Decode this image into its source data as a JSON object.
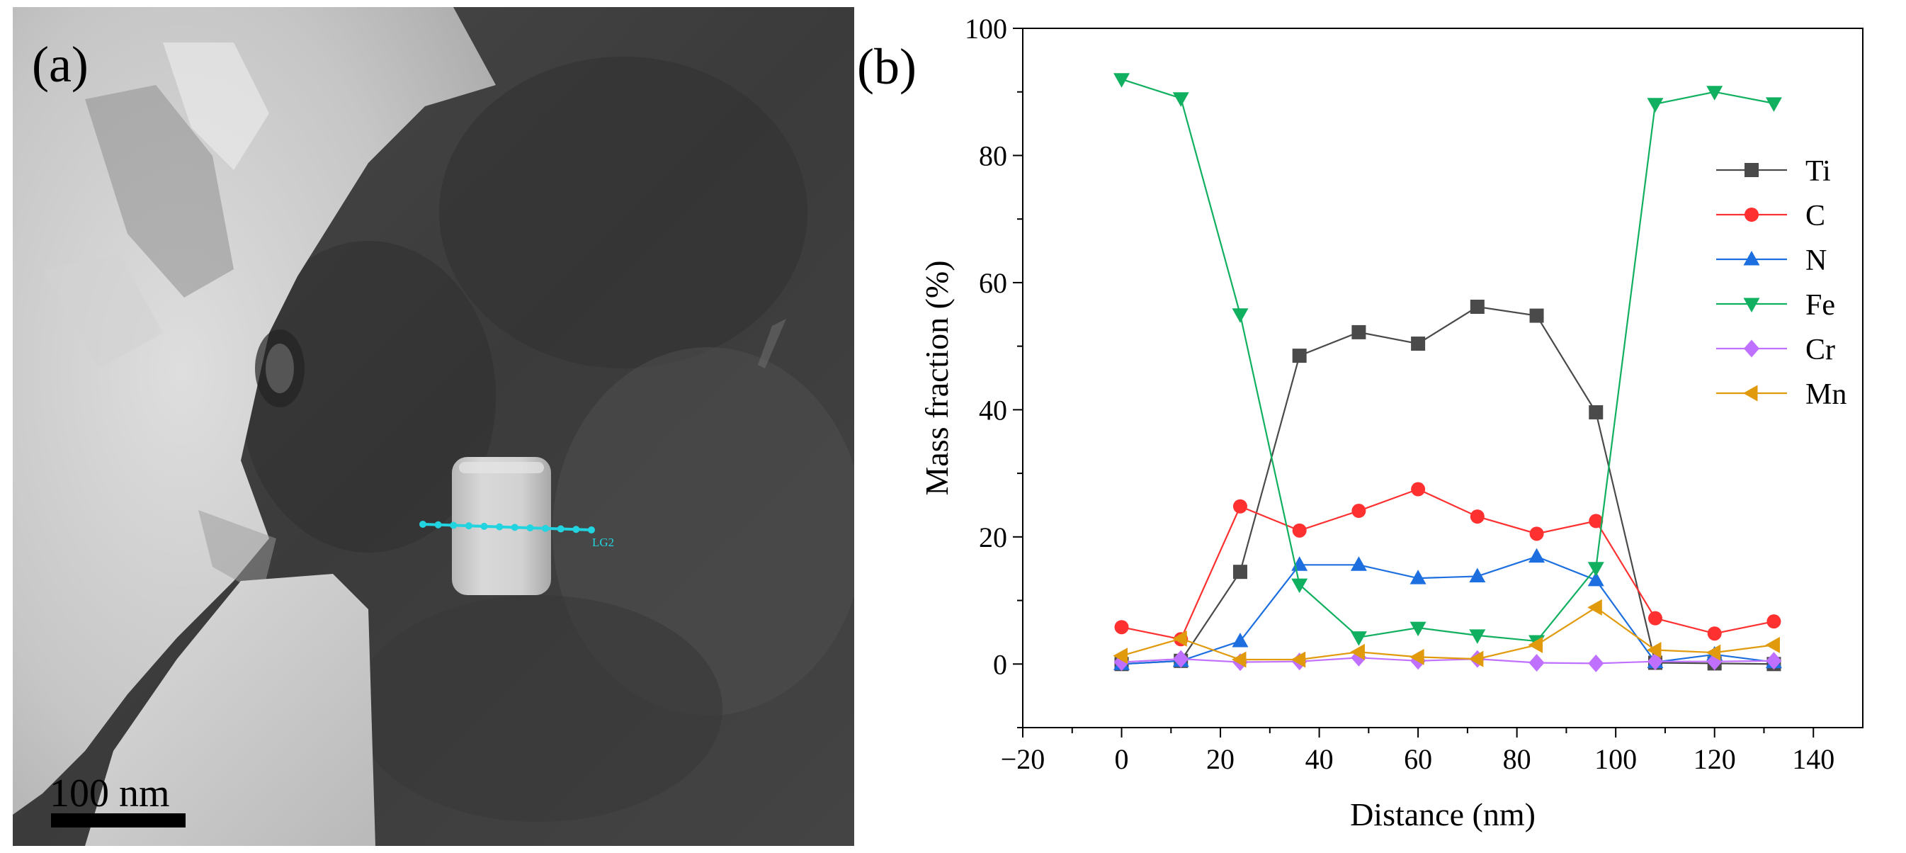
{
  "panel_a": {
    "label": "(a)",
    "scale_bar_label": "100 nm",
    "line_scan_label": "LG2",
    "colors": {
      "line_scan": "#22d4e0",
      "scale_bar": "#000000"
    }
  },
  "panel_b": {
    "label": "(b)"
  },
  "chart_data": {
    "type": "line",
    "title": "",
    "xlabel": "Distance (nm)",
    "ylabel": "Mass fraction (%)",
    "xlim": [
      -20,
      150
    ],
    "ylim": [
      -10,
      100
    ],
    "xticks": [
      -20,
      0,
      20,
      40,
      60,
      80,
      100,
      120,
      140
    ],
    "xtick_labels": [
      "−20",
      "0",
      "20",
      "40",
      "60",
      "80",
      "100",
      "120",
      "140"
    ],
    "yticks": [
      0,
      20,
      40,
      60,
      80,
      100
    ],
    "ytick_labels": [
      "0",
      "20",
      "40",
      "60",
      "80",
      "100"
    ],
    "grid": false,
    "legend_position": "top-right",
    "x": [
      0,
      12,
      24,
      36,
      48,
      60,
      72,
      84,
      96,
      108,
      120,
      132
    ],
    "series": [
      {
        "name": "Ti",
        "color": "#4a4a4a",
        "marker": "square",
        "values": [
          0,
          0.5,
          14.5,
          48.5,
          52.2,
          50.4,
          56.2,
          54.8,
          39.6,
          0.2,
          0.1,
          0
        ]
      },
      {
        "name": "C",
        "color": "#ff3030",
        "marker": "circle",
        "values": [
          5.8,
          3.9,
          24.8,
          21,
          24.1,
          27.5,
          23.2,
          20.5,
          22.5,
          7.2,
          4.8,
          6.7
        ]
      },
      {
        "name": "N",
        "color": "#1d6fe0",
        "marker": "triangle-up",
        "values": [
          0,
          0.5,
          3.6,
          15.6,
          15.6,
          13.5,
          13.8,
          16.9,
          13.2,
          0.3,
          1.5,
          0.3
        ]
      },
      {
        "name": "Fe",
        "color": "#10b060",
        "marker": "triangle-down",
        "values": [
          92,
          89,
          55,
          12.5,
          4.2,
          5.7,
          4.5,
          3.6,
          15.1,
          88.1,
          90,
          88.2
        ]
      },
      {
        "name": "Cr",
        "color": "#c070ff",
        "marker": "diamond",
        "values": [
          0.3,
          0.8,
          0.3,
          0.4,
          1,
          0.5,
          0.8,
          0.2,
          0.1,
          0.4,
          0.4,
          0.5
        ]
      },
      {
        "name": "Mn",
        "color": "#e09a0c",
        "marker": "triangle-left",
        "values": [
          1.3,
          4,
          0.7,
          0.7,
          1.9,
          1.1,
          0.8,
          3,
          8.9,
          2.2,
          1.8,
          3
        ]
      }
    ]
  }
}
